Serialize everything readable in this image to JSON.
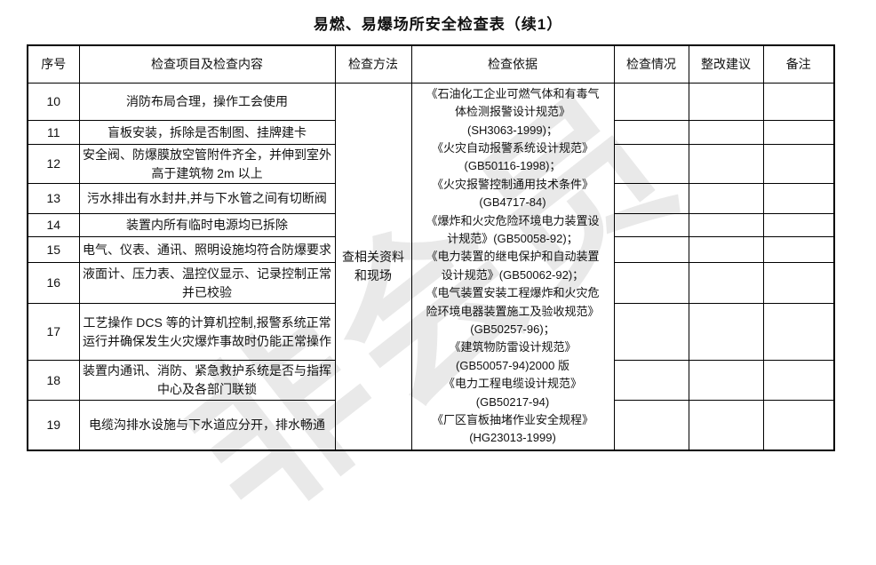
{
  "title": "易燃、易爆场所安全检查表（续1）",
  "watermark": "非会员",
  "table": {
    "headers": [
      "序号",
      "检查项目及检查内容",
      "检查方法",
      "检查依据",
      "检查情况",
      "整改建议",
      "备注"
    ],
    "method": "查相关资料和现场",
    "basis_lines": [
      "《石油化工企业可燃气体和有毒气",
      "体检测报警设计规范》",
      "(SH3063-1999)；",
      "《火灾自动报警系统设计规范》",
      "(GB50116-1998)；",
      "《火灾报警控制通用技术条件》",
      "(GB4717-84)",
      "《爆炸和火灾危险环境电力装置设",
      "计规范》(GB50058-92)；",
      "《电力装置的继电保护和自动装置",
      "设计规范》(GB50062-92)；",
      "《电气装置安装工程爆炸和火灾危",
      "险环境电器装置施工及验收规范》",
      "(GB50257-96)；",
      "《建筑物防雷设计规范》",
      "(GB50057-94)2000 版",
      "《电力工程电缆设计规范》",
      "(GB50217-94)",
      "《厂区盲板抽堵作业安全规程》",
      "(HG23013-1999)"
    ],
    "rows": [
      {
        "no": "10",
        "content": "消防布局合理，操作工会使用"
      },
      {
        "no": "11",
        "content": "盲板安装，拆除是否制图、挂牌建卡"
      },
      {
        "no": "12",
        "content": "安全阀、防爆膜放空管附件齐全，并伸到室外高于建筑物 2m 以上"
      },
      {
        "no": "13",
        "content": "污水排出有水封井,并与下水管之间有切断阀"
      },
      {
        "no": "14",
        "content": "装置内所有临时电源均已拆除"
      },
      {
        "no": "15",
        "content": "电气、仪表、通讯、照明设施均符合防爆要求"
      },
      {
        "no": "16",
        "content": "液面计、压力表、温控仪显示、记录控制正常并已校验"
      },
      {
        "no": "17",
        "content": "工艺操作 DCS 等的计算机控制,报警系统正常运行并确保发生火灾爆炸事故时仍能正常操作"
      },
      {
        "no": "18",
        "content": "装置内通讯、消防、紧急救护系统是否与指挥中心及各部门联锁"
      },
      {
        "no": "19",
        "content": "电缆沟排水设施与下水道应分开，排水畅通"
      }
    ]
  }
}
